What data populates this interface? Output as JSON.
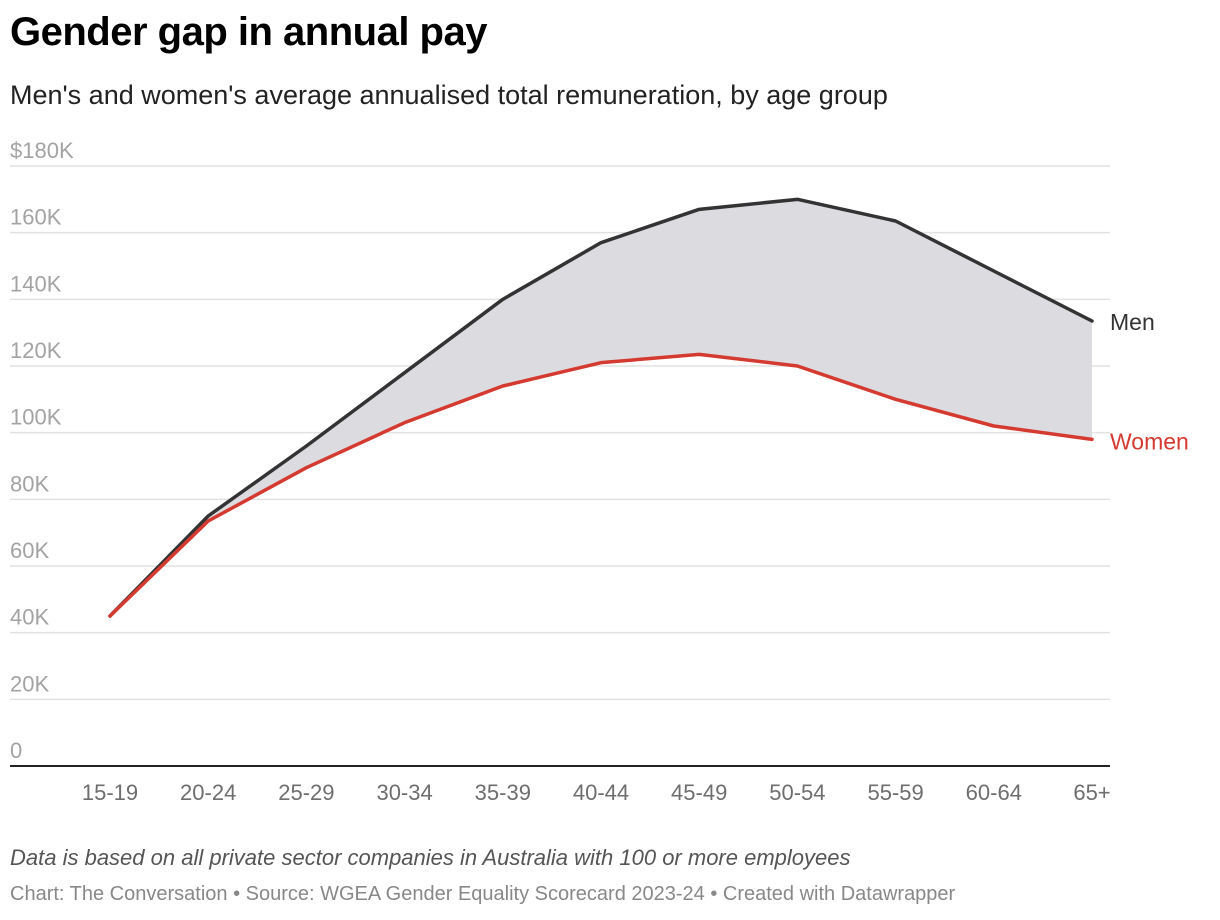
{
  "header": {
    "title": "Gender gap in annual pay",
    "subtitle": "Men's and women's average annualised total remuneration, by age group"
  },
  "footer": {
    "note": "Data is based on all private sector companies in Australia with 100 or more employees",
    "credits": "Chart: The Conversation • Source: WGEA Gender Equality Scorecard 2023-24 • Created with Datawrapper"
  },
  "chart_data": {
    "type": "area",
    "title": "Gender gap in annual pay",
    "subtitle": "Men's and women's average annualised total remuneration, by age group",
    "xlabel": "",
    "ylabel": "",
    "categories": [
      "15-19",
      "20-24",
      "25-29",
      "30-34",
      "35-39",
      "40-44",
      "45-49",
      "50-54",
      "55-59",
      "60-64",
      "65+"
    ],
    "y_ticks": [
      0,
      20000,
      40000,
      60000,
      80000,
      100000,
      120000,
      140000,
      160000,
      180000
    ],
    "y_tick_labels": [
      "0",
      "20K",
      "40K",
      "60K",
      "80K",
      "100K",
      "120K",
      "140K",
      "160K",
      "$180K"
    ],
    "ylim": [
      0,
      180000
    ],
    "grid": true,
    "legend": "direct labels at line ends",
    "gap_fill_color": "#dcdbe0",
    "series": [
      {
        "name": "Men",
        "color": "#333333",
        "values": [
          45000,
          75000,
          96000,
          118000,
          140000,
          157000,
          167000,
          170000,
          163500,
          148500,
          133500
        ]
      },
      {
        "name": "Women",
        "color": "#d43a2f",
        "values": [
          45000,
          73500,
          89500,
          103000,
          114000,
          121000,
          123500,
          120000,
          110000,
          102000,
          98000
        ]
      }
    ]
  }
}
